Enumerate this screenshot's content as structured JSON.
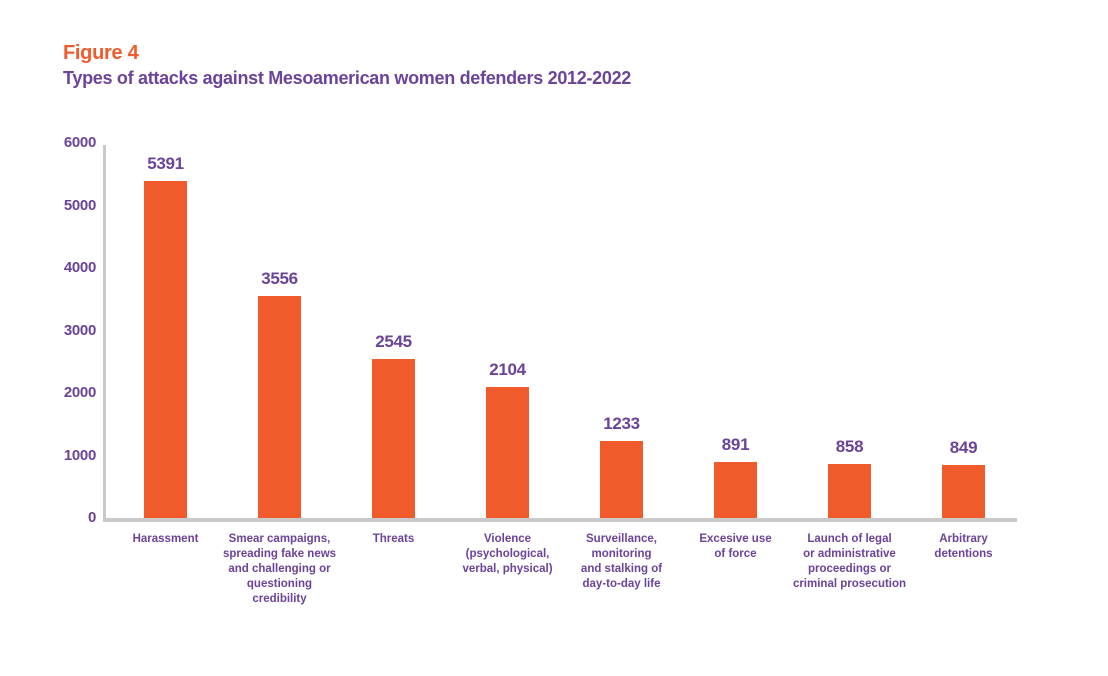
{
  "figure": {
    "label": "Figure 4",
    "title": "Types of attacks against Mesoamerican women defenders 2012-2022"
  },
  "colors": {
    "bar_orange": "#F15B2B",
    "text_purple": "#6B4399",
    "axis_gray": "#C9C9C9",
    "background": "#FFFFFF"
  },
  "chart_data": {
    "type": "bar",
    "title": "Types of attacks against Mesoamerican women defenders 2012-2022",
    "xlabel": "",
    "ylabel": "",
    "ylim": [
      0,
      6000
    ],
    "yticks": [
      0,
      1000,
      2000,
      3000,
      4000,
      5000,
      6000
    ],
    "grid": false,
    "legend": false,
    "bar_color": "#F15B2B",
    "categories": [
      "Harassment",
      "Smear campaigns,\nspreading fake news\nand challenging or\nquestioning\ncredibility",
      "Threats",
      "Violence\n(psychological,\nverbal, physical)",
      "Surveillance,\nmonitoring\nand stalking of\nday-to-day life",
      "Excesive use\nof force",
      "Launch of legal\nor administrative\nproceedings or\ncriminal prosecution",
      "Arbitrary\ndetentions"
    ],
    "values": [
      5391,
      3556,
      2545,
      2104,
      1233,
      891,
      858,
      849
    ]
  }
}
